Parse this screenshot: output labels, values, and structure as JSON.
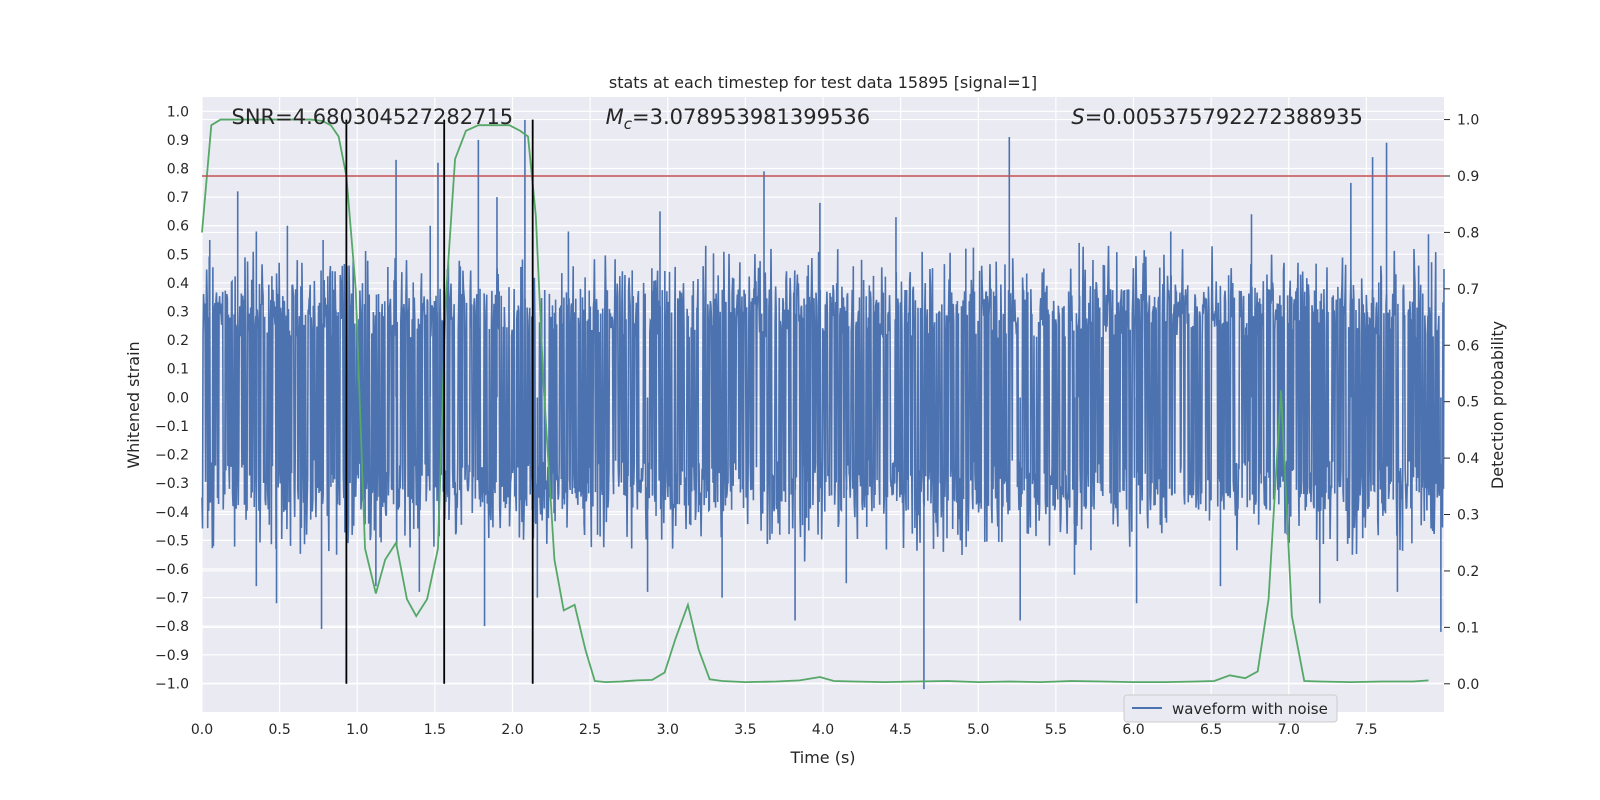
{
  "chart_data": {
    "type": "line",
    "title": "stats at each timestep for test data 15895 [signal=1]",
    "xlabel": "Time (s)",
    "ylabel_left": "Whitened strain",
    "ylabel_right": "Detection probability",
    "xlim": [
      0.0,
      8.0
    ],
    "ylim_left": [
      -1.1,
      1.05
    ],
    "ylim_right": [
      -0.05,
      1.04
    ],
    "x_ticks": [
      "0.0",
      "0.5",
      "1.0",
      "1.5",
      "2.0",
      "2.5",
      "3.0",
      "3.5",
      "4.0",
      "4.5",
      "5.0",
      "5.5",
      "6.0",
      "6.5",
      "7.0",
      "7.5"
    ],
    "y_left_ticks": [
      "1.0",
      "0.9",
      "0.8",
      "0.7",
      "0.6",
      "0.5",
      "0.4",
      "0.3",
      "0.2",
      "0.1",
      "0.0",
      "−0.1",
      "−0.2",
      "−0.3",
      "−0.4",
      "−0.5",
      "−0.6",
      "−0.7",
      "−0.8",
      "−0.9",
      "−1.0"
    ],
    "y_right_ticks": [
      "0.0",
      "0.1",
      "0.2",
      "0.3",
      "0.4",
      "0.5",
      "0.6",
      "0.7",
      "0.8",
      "0.9",
      "1.0"
    ],
    "annotations": [
      {
        "key": "snr",
        "label": "SNR=4.680304527282715",
        "x_data": 0.19
      },
      {
        "key": "mc",
        "label": "M_c=3.078953981399536",
        "x_data": 2.6
      },
      {
        "key": "s",
        "label": "S=0.005375792272388935",
        "x_data": 5.6
      }
    ],
    "threshold_line": {
      "value": 0.9,
      "axis": "right"
    },
    "vertical_lines_s": [
      0.93,
      1.56,
      2.13
    ],
    "legend": [
      {
        "name": "waveform with noise"
      }
    ],
    "legend_position": "lower-right",
    "series": [
      {
        "name": "waveform with noise",
        "axis": "left",
        "kind": "noise",
        "envelope": [
          0.38,
          -0.4
        ],
        "peaks": [
          [
            0.05,
            0.55
          ],
          [
            0.23,
            0.72
          ],
          [
            0.35,
            0.58
          ],
          [
            0.55,
            0.6
          ],
          [
            0.78,
            0.55
          ],
          [
            1.25,
            0.83
          ],
          [
            1.47,
            0.6
          ],
          [
            1.52,
            0.82
          ],
          [
            1.78,
            0.9
          ],
          [
            1.9,
            0.7
          ],
          [
            2.08,
            0.97
          ],
          [
            2.36,
            0.58
          ],
          [
            2.95,
            0.65
          ],
          [
            3.62,
            0.79
          ],
          [
            3.98,
            0.68
          ],
          [
            4.47,
            0.63
          ],
          [
            4.92,
            0.52
          ],
          [
            5.2,
            0.91
          ],
          [
            5.65,
            0.54
          ],
          [
            6.24,
            0.58
          ],
          [
            6.76,
            0.64
          ],
          [
            7.4,
            0.75
          ],
          [
            7.54,
            0.84
          ],
          [
            7.63,
            0.89
          ],
          [
            7.9,
            0.57
          ]
        ],
        "troughs": [
          [
            0.35,
            -0.66
          ],
          [
            0.48,
            -0.72
          ],
          [
            0.77,
            -0.81
          ],
          [
            1.12,
            -0.66
          ],
          [
            1.4,
            -0.68
          ],
          [
            1.82,
            -0.8
          ],
          [
            2.16,
            -0.7
          ],
          [
            2.87,
            -0.68
          ],
          [
            3.35,
            -0.7
          ],
          [
            3.82,
            -0.78
          ],
          [
            4.15,
            -0.65
          ],
          [
            4.65,
            -1.02
          ],
          [
            5.27,
            -0.78
          ],
          [
            5.62,
            -0.62
          ],
          [
            6.02,
            -0.72
          ],
          [
            6.56,
            -0.66
          ],
          [
            7.2,
            -0.72
          ],
          [
            7.7,
            -0.68
          ],
          [
            7.98,
            -0.82
          ]
        ]
      },
      {
        "name": "detection probability",
        "axis": "right",
        "color": "#55a868",
        "x": [
          0.0,
          0.06,
          0.12,
          0.2,
          0.3,
          0.4,
          0.5,
          0.6,
          0.7,
          0.77,
          0.83,
          0.88,
          0.93,
          0.99,
          1.05,
          1.12,
          1.18,
          1.25,
          1.32,
          1.38,
          1.45,
          1.52,
          1.57,
          1.63,
          1.7,
          1.78,
          1.88,
          1.98,
          2.05,
          2.1,
          2.15,
          2.2,
          2.27,
          2.33,
          2.4,
          2.47,
          2.53,
          2.6,
          2.7,
          2.8,
          2.9,
          2.98,
          3.05,
          3.13,
          3.2,
          3.27,
          3.35,
          3.5,
          3.7,
          3.85,
          3.98,
          4.07,
          4.2,
          4.4,
          4.6,
          4.8,
          5.0,
          5.2,
          5.4,
          5.6,
          5.8,
          6.0,
          6.2,
          6.4,
          6.52,
          6.62,
          6.72,
          6.8,
          6.87,
          6.95,
          7.02,
          7.1,
          7.2,
          7.4,
          7.6,
          7.8,
          7.9
        ],
        "y": [
          0.8,
          0.99,
          1.0,
          1.0,
          1.0,
          1.0,
          1.0,
          1.0,
          1.0,
          0.998,
          0.99,
          0.97,
          0.9,
          0.7,
          0.24,
          0.16,
          0.22,
          0.25,
          0.15,
          0.12,
          0.15,
          0.24,
          0.68,
          0.93,
          0.98,
          0.99,
          0.99,
          0.99,
          0.98,
          0.97,
          0.83,
          0.53,
          0.22,
          0.13,
          0.14,
          0.06,
          0.005,
          0.003,
          0.004,
          0.006,
          0.007,
          0.02,
          0.08,
          0.14,
          0.06,
          0.008,
          0.005,
          0.003,
          0.004,
          0.006,
          0.012,
          0.005,
          0.004,
          0.003,
          0.004,
          0.005,
          0.003,
          0.004,
          0.003,
          0.005,
          0.004,
          0.003,
          0.003,
          0.004,
          0.005,
          0.015,
          0.01,
          0.022,
          0.15,
          0.52,
          0.12,
          0.005,
          0.004,
          0.003,
          0.004,
          0.004,
          0.006
        ]
      }
    ]
  }
}
